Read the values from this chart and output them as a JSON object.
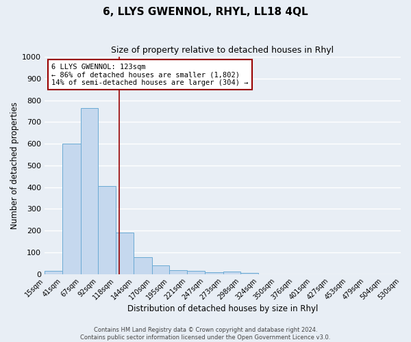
{
  "title": "6, LLYS GWENNOL, RHYL, LL18 4QL",
  "subtitle": "Size of property relative to detached houses in Rhyl",
  "xlabel": "Distribution of detached houses by size in Rhyl",
  "ylabel": "Number of detached properties",
  "bar_heights": [
    15,
    600,
    765,
    405,
    190,
    78,
    40,
    18,
    13,
    8,
    12,
    5,
    0,
    0,
    0,
    0,
    0,
    0,
    0,
    0
  ],
  "bin_edges": [
    15,
    41,
    67,
    92,
    118,
    144,
    170,
    195,
    221,
    247,
    273,
    298,
    324,
    350,
    376,
    401,
    427,
    453,
    479,
    504,
    530
  ],
  "tick_labels": [
    "15sqm",
    "41sqm",
    "67sqm",
    "92sqm",
    "118sqm",
    "144sqm",
    "170sqm",
    "195sqm",
    "221sqm",
    "247sqm",
    "273sqm",
    "298sqm",
    "324sqm",
    "350sqm",
    "376sqm",
    "401sqm",
    "427sqm",
    "453sqm",
    "479sqm",
    "504sqm",
    "530sqm"
  ],
  "bar_color": "#c5d8ee",
  "bar_edge_color": "#6aaad4",
  "property_line_x": 123,
  "property_line_color": "#990000",
  "annotation_line1": "6 LLYS GWENNOL: 123sqm",
  "annotation_line2": "← 86% of detached houses are smaller (1,802)",
  "annotation_line3": "14% of semi-detached houses are larger (304) →",
  "ylim": [
    0,
    1000
  ],
  "yticks": [
    0,
    100,
    200,
    300,
    400,
    500,
    600,
    700,
    800,
    900,
    1000
  ],
  "background_color": "#e8eef5",
  "axes_bg_color": "#e8eef5",
  "grid_color": "#ffffff",
  "footer_line1": "Contains HM Land Registry data © Crown copyright and database right 2024.",
  "footer_line2": "Contains public sector information licensed under the Open Government Licence v3.0.",
  "title_fontsize": 11,
  "subtitle_fontsize": 9,
  "xlabel_fontsize": 8.5,
  "ylabel_fontsize": 8.5,
  "tick_fontsize": 7,
  "annotation_fontsize": 7.5,
  "footer_fontsize": 6
}
